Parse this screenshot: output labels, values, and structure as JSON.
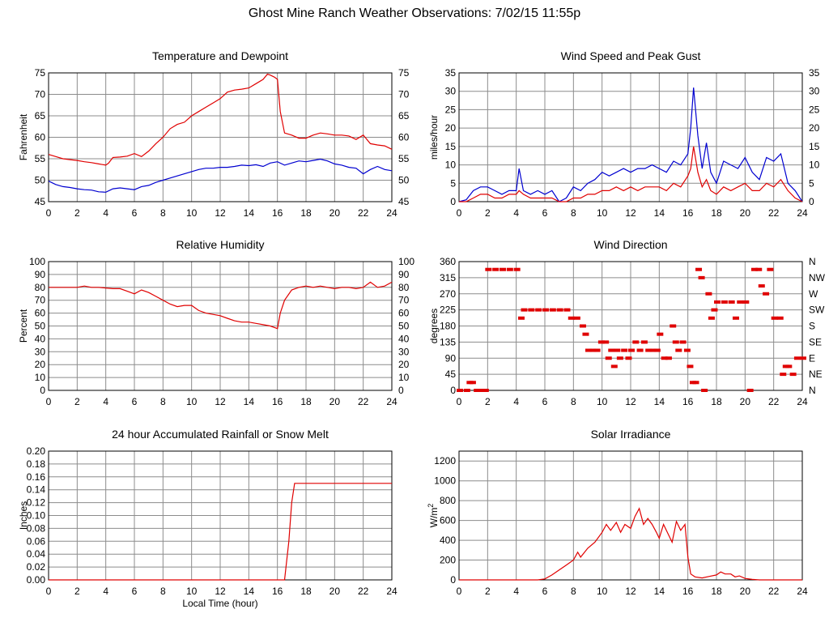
{
  "title": "Ghost Mine Ranch Weather Observations: 7/02/15 11:55p",
  "colors": {
    "red": "#e00000",
    "blue": "#0000d0",
    "grid": "#8c8c8c"
  },
  "chart_data": [
    {
      "id": "temp",
      "type": "line",
      "title": "Temperature and Dewpoint",
      "ylabel": "Fahrenheit",
      "xlabel": "",
      "xlim": [
        0,
        24
      ],
      "ylim": [
        45,
        75
      ],
      "yticks": [
        45,
        50,
        55,
        60,
        65,
        70,
        75
      ],
      "right_ticks": [
        "45",
        "50",
        "55",
        "60",
        "65",
        "70",
        "75"
      ],
      "grid": true,
      "series": [
        {
          "color": "red",
          "x": [
            0,
            0.5,
            1,
            1.5,
            2,
            2.5,
            3,
            3.5,
            4,
            4.2,
            4.5,
            5,
            5.5,
            6,
            6.5,
            7,
            7.5,
            8,
            8.5,
            9,
            9.5,
            10,
            10.5,
            11,
            11.5,
            12,
            12.5,
            13,
            13.5,
            14,
            14.5,
            15,
            15.3,
            15.5,
            15.8,
            16,
            16.2,
            16.5,
            17,
            17.5,
            18,
            18.5,
            19,
            19.5,
            20,
            20.5,
            21,
            21.5,
            22,
            22.5,
            23,
            23.5,
            24
          ],
          "y": [
            56,
            55.5,
            55,
            54.8,
            54.6,
            54.3,
            54.1,
            53.8,
            53.5,
            54,
            55.3,
            55.4,
            55.6,
            56.2,
            55.5,
            56.8,
            58.5,
            60,
            62,
            63,
            63.5,
            65,
            66,
            67,
            68,
            69,
            70.5,
            71,
            71.2,
            71.5,
            72.5,
            73.5,
            74.7,
            74.5,
            74,
            73.5,
            66,
            61,
            60.5,
            59.8,
            59.8,
            60.5,
            61,
            60.8,
            60.5,
            60.5,
            60.3,
            59.5,
            60.5,
            58.5,
            58.2,
            58,
            57.2
          ]
        },
        {
          "color": "blue",
          "x": [
            0,
            0.5,
            1,
            1.5,
            2,
            2.5,
            3,
            3.5,
            4,
            4.5,
            5,
            5.5,
            6,
            6.5,
            7,
            7.5,
            8,
            8.5,
            9,
            9.5,
            10,
            10.5,
            11,
            11.5,
            12,
            12.5,
            13,
            13.5,
            14,
            14.5,
            15,
            15.5,
            16,
            16.5,
            17,
            17.5,
            18,
            18.5,
            19,
            19.5,
            20,
            20.5,
            21,
            21.5,
            22,
            22.5,
            23,
            23.5,
            24
          ],
          "y": [
            49.8,
            49,
            48.5,
            48.3,
            48,
            47.8,
            47.7,
            47.3,
            47.2,
            48,
            48.2,
            48,
            47.8,
            48.5,
            48.8,
            49.5,
            50,
            50.5,
            51,
            51.5,
            52,
            52.5,
            52.8,
            52.8,
            53,
            53,
            53.2,
            53.5,
            53.4,
            53.6,
            53.2,
            54,
            54.3,
            53.5,
            54,
            54.5,
            54.3,
            54.6,
            54.9,
            54.5,
            53.8,
            53.5,
            53,
            52.8,
            51.5,
            52.5,
            53.2,
            52.5,
            52.2
          ]
        }
      ]
    },
    {
      "id": "wind",
      "type": "line",
      "title": "Wind Speed and Peak Gust",
      "ylabel": "miles/hour",
      "xlabel": "",
      "xlim": [
        0,
        24
      ],
      "ylim": [
        0,
        35
      ],
      "yticks": [
        0,
        5,
        10,
        15,
        20,
        25,
        30,
        35
      ],
      "right_ticks": [
        "0",
        "5",
        "10",
        "15",
        "20",
        "25",
        "30",
        "35"
      ],
      "grid": true,
      "series": [
        {
          "color": "blue",
          "x": [
            0,
            0.5,
            1,
            1.5,
            2,
            2.5,
            3,
            3.5,
            4,
            4.2,
            4.5,
            5,
            5.5,
            6,
            6.5,
            7,
            7.5,
            8,
            8.5,
            9,
            9.5,
            10,
            10.5,
            11,
            11.5,
            12,
            12.5,
            13,
            13.5,
            14,
            14.5,
            15,
            15.5,
            16,
            16.2,
            16.4,
            16.7,
            17,
            17.3,
            17.6,
            18,
            18.5,
            19,
            19.5,
            20,
            20.5,
            21,
            21.5,
            22,
            22.5,
            23,
            23.5,
            24
          ],
          "y": [
            0,
            0.5,
            3,
            4,
            4,
            3,
            2,
            3,
            3,
            9,
            3,
            2,
            3,
            2,
            3,
            0,
            1,
            4,
            3,
            5,
            6,
            8,
            7,
            8,
            9,
            8,
            9,
            9,
            10,
            9,
            8,
            11,
            10,
            13,
            20,
            31,
            18,
            9,
            16,
            8,
            5,
            11,
            10,
            9,
            12,
            8,
            6,
            12,
            11,
            13,
            5,
            3,
            0
          ]
        },
        {
          "color": "red",
          "x": [
            0,
            0.5,
            1,
            1.5,
            2,
            2.5,
            3,
            3.5,
            4,
            4.2,
            4.5,
            5,
            5.5,
            6,
            6.5,
            7,
            7.5,
            8,
            8.5,
            9,
            9.5,
            10,
            10.5,
            11,
            11.5,
            12,
            12.5,
            13,
            13.5,
            14,
            14.5,
            15,
            15.5,
            16,
            16.2,
            16.4,
            16.7,
            17,
            17.3,
            17.6,
            18,
            18.5,
            19,
            19.5,
            20,
            20.5,
            21,
            21.5,
            22,
            22.5,
            23,
            23.5,
            24
          ],
          "y": [
            0,
            0,
            1,
            2,
            2,
            1,
            1,
            2,
            2,
            3,
            2,
            1,
            1,
            1,
            1,
            0,
            0,
            1,
            1,
            2,
            2,
            3,
            3,
            4,
            3,
            4,
            3,
            4,
            4,
            4,
            3,
            5,
            4,
            7,
            9,
            15,
            8,
            4,
            6,
            3,
            2,
            4,
            3,
            4,
            5,
            3,
            3,
            5,
            4,
            6,
            3,
            1,
            0
          ]
        }
      ]
    },
    {
      "id": "humidity",
      "type": "line",
      "title": "Relative Humidity",
      "ylabel": "Percent",
      "xlabel": "",
      "xlim": [
        0,
        24
      ],
      "ylim": [
        0,
        100
      ],
      "yticks": [
        0,
        10,
        20,
        30,
        40,
        50,
        60,
        70,
        80,
        90,
        100
      ],
      "right_ticks": [
        "0",
        "10",
        "20",
        "30",
        "40",
        "50",
        "60",
        "70",
        "80",
        "90",
        "100"
      ],
      "grid": true,
      "series": [
        {
          "color": "red",
          "x": [
            0,
            1,
            2,
            2.5,
            3,
            3.5,
            4,
            4.5,
            5,
            5.5,
            6,
            6.5,
            7,
            7.5,
            8,
            8.5,
            9,
            9.5,
            10,
            10.5,
            11,
            11.5,
            12,
            12.5,
            13,
            13.5,
            14,
            14.5,
            15,
            15.5,
            16,
            16.2,
            16.5,
            17,
            17.5,
            18,
            18.5,
            19,
            19.5,
            20,
            20.5,
            21,
            21.5,
            22,
            22.5,
            23,
            23.5,
            24
          ],
          "y": [
            80,
            80,
            80,
            81,
            80,
            80,
            79.5,
            79,
            79,
            77,
            75,
            78,
            76,
            73,
            70,
            67,
            65,
            66,
            66,
            62,
            60,
            59,
            58,
            56,
            54,
            53,
            53,
            52,
            51,
            50,
            48,
            60,
            70,
            78,
            80,
            81,
            80,
            81,
            80,
            79,
            80,
            80,
            79,
            80,
            84,
            80,
            81,
            84
          ]
        }
      ]
    },
    {
      "id": "direction",
      "type": "scatter",
      "title": "Wind Direction",
      "ylabel": "degrees",
      "xlabel": "",
      "xlim": [
        0,
        24
      ],
      "ylim": [
        0,
        360
      ],
      "yticks": [
        0,
        45,
        90,
        135,
        180,
        225,
        270,
        315,
        360
      ],
      "right_ticks": [
        "N",
        "NE",
        "E",
        "SE",
        "S",
        "SW",
        "W",
        "NW",
        "N"
      ],
      "grid": true,
      "series": [
        {
          "color": "red",
          "points": [
            [
              0.0,
              0
            ],
            [
              0.5,
              0
            ],
            [
              0.7,
              22
            ],
            [
              0.9,
              22
            ],
            [
              1.2,
              0
            ],
            [
              1.5,
              0
            ],
            [
              1.8,
              0
            ],
            [
              2.0,
              338
            ],
            [
              2.5,
              338
            ],
            [
              3.0,
              338
            ],
            [
              3.5,
              338
            ],
            [
              4.0,
              338
            ],
            [
              4.3,
              202
            ],
            [
              4.5,
              225
            ],
            [
              5.0,
              225
            ],
            [
              5.5,
              225
            ],
            [
              6.0,
              225
            ],
            [
              6.5,
              225
            ],
            [
              7.0,
              225
            ],
            [
              7.5,
              225
            ],
            [
              7.8,
              202
            ],
            [
              8.2,
              202
            ],
            [
              8.6,
              180
            ],
            [
              8.8,
              157
            ],
            [
              9.0,
              112
            ],
            [
              9.3,
              112
            ],
            [
              9.6,
              112
            ],
            [
              9.9,
              135
            ],
            [
              10.2,
              135
            ],
            [
              10.4,
              90
            ],
            [
              10.6,
              112
            ],
            [
              10.8,
              67
            ],
            [
              11.0,
              112
            ],
            [
              11.2,
              90
            ],
            [
              11.5,
              112
            ],
            [
              11.8,
              90
            ],
            [
              12.0,
              112
            ],
            [
              12.3,
              135
            ],
            [
              12.6,
              112
            ],
            [
              12.9,
              135
            ],
            [
              13.2,
              112
            ],
            [
              13.5,
              112
            ],
            [
              13.8,
              112
            ],
            [
              14.0,
              157
            ],
            [
              14.3,
              90
            ],
            [
              14.6,
              90
            ],
            [
              14.9,
              180
            ],
            [
              15.1,
              135
            ],
            [
              15.3,
              112
            ],
            [
              15.6,
              135
            ],
            [
              15.9,
              112
            ],
            [
              16.1,
              67
            ],
            [
              16.3,
              22
            ],
            [
              16.5,
              22
            ],
            [
              16.7,
              338
            ],
            [
              16.9,
              315
            ],
            [
              17.1,
              0
            ],
            [
              17.4,
              270
            ],
            [
              17.6,
              202
            ],
            [
              17.8,
              225
            ],
            [
              18.0,
              247
            ],
            [
              18.5,
              247
            ],
            [
              19.0,
              247
            ],
            [
              19.3,
              202
            ],
            [
              19.6,
              247
            ],
            [
              20.0,
              247
            ],
            [
              20.3,
              0
            ],
            [
              20.6,
              338
            ],
            [
              20.9,
              338
            ],
            [
              21.1,
              292
            ],
            [
              21.4,
              270
            ],
            [
              21.7,
              338
            ],
            [
              22.0,
              202
            ],
            [
              22.4,
              202
            ],
            [
              22.6,
              45
            ],
            [
              22.8,
              67
            ],
            [
              23.0,
              67
            ],
            [
              23.3,
              45
            ],
            [
              23.6,
              90
            ],
            [
              24.0,
              90
            ]
          ]
        }
      ]
    },
    {
      "id": "rain",
      "type": "line",
      "title": "24 hour Accumulated Rainfall or Snow Melt",
      "ylabel": "Inches",
      "xlabel": "Local Time (hour)",
      "xlim": [
        0,
        24
      ],
      "ylim": [
        0,
        0.2
      ],
      "yticks": [
        0,
        0.02,
        0.04,
        0.06,
        0.08,
        0.1,
        0.12,
        0.14,
        0.16,
        0.18,
        0.2
      ],
      "ytick_labels": [
        "0.00",
        "0.02",
        "0.04",
        "0.06",
        "0.08",
        "0.10",
        "0.12",
        "0.14",
        "0.16",
        "0.18",
        "0.20"
      ],
      "grid": true,
      "series": [
        {
          "color": "red",
          "x": [
            0,
            16.5,
            16.8,
            17.0,
            17.2,
            24
          ],
          "y": [
            0,
            0,
            0.06,
            0.12,
            0.15,
            0.15
          ]
        }
      ]
    },
    {
      "id": "solar",
      "type": "line",
      "title": "Solar Irradiance",
      "ylabel": "W/m",
      "ylabel_sup": "2",
      "xlabel": "",
      "xlim": [
        0,
        24
      ],
      "ylim": [
        0,
        1300
      ],
      "yticks": [
        0,
        200,
        400,
        600,
        800,
        1000,
        1200
      ],
      "grid": true,
      "series": [
        {
          "color": "red",
          "x": [
            0,
            5.5,
            6,
            6.5,
            7,
            7.5,
            8,
            8.3,
            8.5,
            9,
            9.5,
            10,
            10.3,
            10.6,
            11,
            11.3,
            11.6,
            12,
            12.3,
            12.6,
            12.9,
            13.2,
            13.5,
            13.8,
            14,
            14.3,
            14.6,
            14.9,
            15.2,
            15.5,
            15.8,
            16,
            16.2,
            16.5,
            17,
            17.5,
            18,
            18.3,
            18.6,
            19,
            19.3,
            19.6,
            20,
            20.5,
            21,
            24
          ],
          "y": [
            0,
            0,
            10,
            50,
            100,
            150,
            200,
            280,
            230,
            320,
            380,
            480,
            560,
            500,
            580,
            480,
            560,
            520,
            640,
            720,
            560,
            620,
            560,
            480,
            420,
            560,
            470,
            380,
            590,
            500,
            560,
            230,
            60,
            30,
            20,
            35,
            50,
            80,
            60,
            60,
            30,
            40,
            15,
            5,
            0,
            0
          ]
        }
      ]
    }
  ]
}
